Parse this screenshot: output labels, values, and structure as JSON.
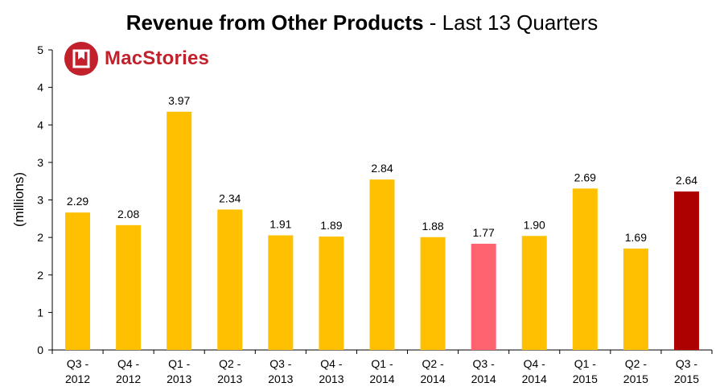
{
  "title_bold": "Revenue from Other Products",
  "title_rest": " - Last 13 Quarters",
  "logo_text": "MacStories",
  "colors": {
    "bar": "#fec000",
    "highlight_prev_year": "#ff6370",
    "highlight_current": "#ad0000",
    "brand": "#c2202b"
  },
  "chart_data": {
    "type": "bar",
    "title": "Revenue from Other Products - Last 13 Quarters",
    "xlabel": "",
    "ylabel": "(millions)",
    "ylim": [
      0,
      5
    ],
    "y_ticks": [
      "0",
      "1",
      "2",
      "2",
      "3",
      "3",
      "4",
      "4",
      "5"
    ],
    "categories": [
      [
        "Q3 -",
        "2012"
      ],
      [
        "Q4 -",
        "2012"
      ],
      [
        "Q1 -",
        "2013"
      ],
      [
        "Q2 -",
        "2013"
      ],
      [
        "Q3 -",
        "2013"
      ],
      [
        "Q4 -",
        "2013"
      ],
      [
        "Q1 -",
        "2014"
      ],
      [
        "Q2 -",
        "2014"
      ],
      [
        "Q3 -",
        "2014"
      ],
      [
        "Q4 -",
        "2014"
      ],
      [
        "Q1 -",
        "2015"
      ],
      [
        "Q2 -",
        "2015"
      ],
      [
        "Q3 -",
        "2015"
      ]
    ],
    "values": [
      2.29,
      2.08,
      3.97,
      2.34,
      1.91,
      1.89,
      2.84,
      1.88,
      1.77,
      1.9,
      2.69,
      1.69,
      2.64
    ],
    "data_labels": [
      "2.29",
      "2.08",
      "3.97",
      "2.34",
      "1.91",
      "1.89",
      "2.84",
      "1.88",
      "1.77",
      "1.90",
      "2.69",
      "1.69",
      "2.64"
    ],
    "bar_colors": [
      "bar",
      "bar",
      "bar",
      "bar",
      "bar",
      "bar",
      "bar",
      "bar",
      "highlight_prev_year",
      "bar",
      "bar",
      "bar",
      "highlight_current"
    ],
    "grid": false,
    "legend": "none"
  }
}
